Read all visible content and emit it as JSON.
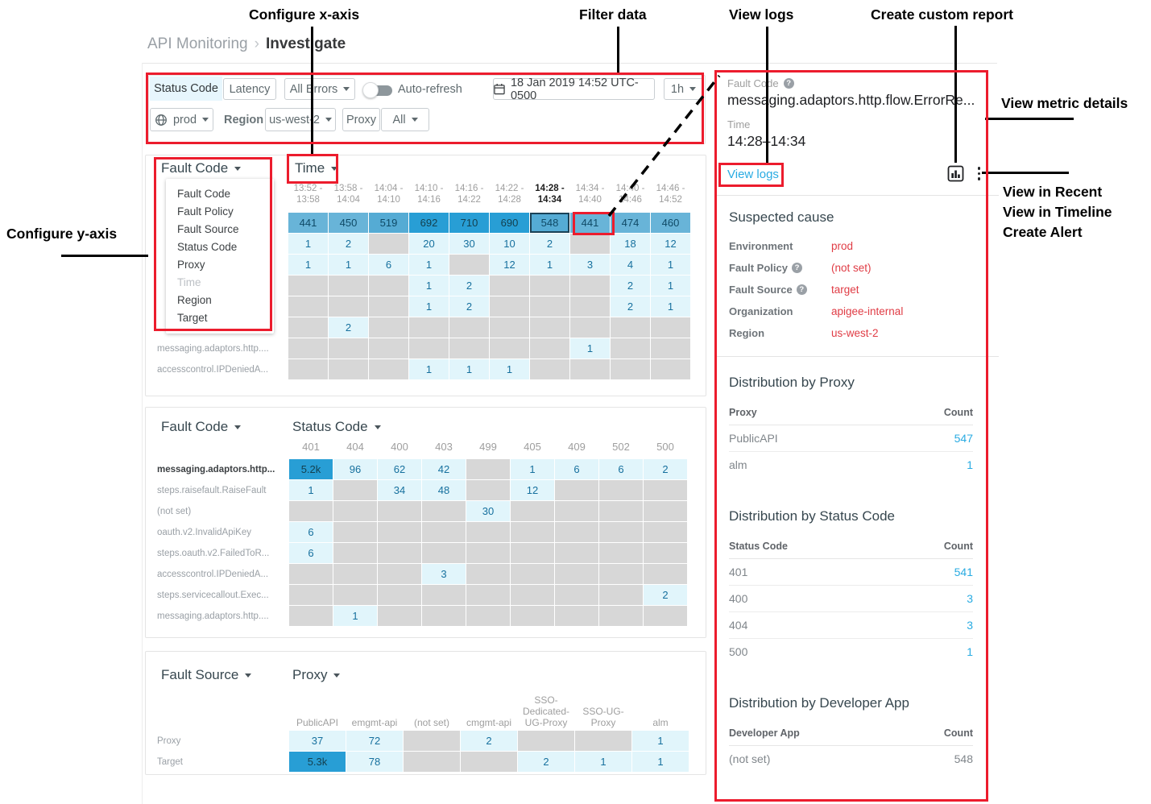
{
  "icons": {
    "help": "?"
  },
  "annotations": {
    "configure_x_axis": "Configure x-axis",
    "filter_data": "Filter data",
    "view_logs": "View logs",
    "create_custom_report": "Create custom report",
    "view_metric_details": "View metric details",
    "configure_y_axis": "Configure y-axis",
    "menu_items": [
      "View in Recent",
      "View in Timeline",
      "Create Alert"
    ]
  },
  "breadcrumb": {
    "parent": "API Monitoring",
    "separator": "›",
    "current": "Investigate"
  },
  "filter_bar": {
    "tabs": [
      {
        "label": "Status Code"
      },
      {
        "label": "Latency"
      }
    ],
    "errors_dropdown": "All Errors",
    "auto_refresh_label": "Auto-refresh",
    "date": "18 Jan 2019 14:52 UTC-0500",
    "interval": "1h",
    "environment": "prod",
    "region_label": "Region",
    "region_value": "us-west-2",
    "proxy_label": "Proxy",
    "proxy_value": "All"
  },
  "matrix1": {
    "y_axis": "Fault Code",
    "x_axis": "Time",
    "dropdown": [
      {
        "label": "Fault Code",
        "disabled": false
      },
      {
        "label": "Fault Policy",
        "disabled": false
      },
      {
        "label": "Fault Source",
        "disabled": false
      },
      {
        "label": "Status Code",
        "disabled": false
      },
      {
        "label": "Proxy",
        "disabled": false
      },
      {
        "label": "Time",
        "disabled": true
      },
      {
        "label": "Region",
        "disabled": false
      },
      {
        "label": "Target",
        "disabled": false
      }
    ],
    "columns": [
      {
        "lines": [
          "13:52 -",
          "13:58"
        ]
      },
      {
        "lines": [
          "13:58 -",
          "14:04"
        ]
      },
      {
        "lines": [
          "14:04 -",
          "14:10"
        ]
      },
      {
        "lines": [
          "14:10 -",
          "14:16"
        ]
      },
      {
        "lines": [
          "14:16 -",
          "14:22"
        ]
      },
      {
        "lines": [
          "14:22 -",
          "14:28"
        ]
      },
      {
        "lines": [
          "14:28 -",
          "14:34"
        ],
        "bold": true
      },
      {
        "lines": [
          "14:34 -",
          "14:40"
        ]
      },
      {
        "lines": [
          "14:40 -",
          "14:46"
        ]
      },
      {
        "lines": [
          "14:46 -",
          "14:52"
        ]
      }
    ],
    "rows": [
      {
        "label": "",
        "cells": [
          {
            "v": "441",
            "s": "m"
          },
          {
            "v": "450",
            "s": "m"
          },
          {
            "v": "519",
            "s": "m2"
          },
          {
            "v": "692",
            "s": "d"
          },
          {
            "v": "710",
            "s": "d"
          },
          {
            "v": "690",
            "s": "d"
          },
          {
            "v": "548",
            "s": "m2",
            "sel": true
          },
          {
            "v": "441",
            "s": "m"
          },
          {
            "v": "474",
            "s": "m"
          },
          {
            "v": "460",
            "s": "m"
          }
        ]
      },
      {
        "label": "",
        "cells": [
          {
            "v": "1",
            "s": "l"
          },
          {
            "v": "2",
            "s": "l"
          },
          null,
          {
            "v": "20",
            "s": "l"
          },
          {
            "v": "30",
            "s": "l"
          },
          {
            "v": "10",
            "s": "l"
          },
          {
            "v": "2",
            "s": "l"
          },
          null,
          {
            "v": "18",
            "s": "l"
          },
          {
            "v": "12",
            "s": "l"
          }
        ]
      },
      {
        "label": "",
        "cells": [
          {
            "v": "1",
            "s": "l"
          },
          {
            "v": "1",
            "s": "l"
          },
          {
            "v": "6",
            "s": "l"
          },
          {
            "v": "1",
            "s": "l"
          },
          null,
          {
            "v": "12",
            "s": "l"
          },
          {
            "v": "1",
            "s": "l"
          },
          {
            "v": "3",
            "s": "l"
          },
          {
            "v": "4",
            "s": "l"
          },
          {
            "v": "1",
            "s": "l"
          }
        ]
      },
      {
        "label": "",
        "cells": [
          null,
          null,
          null,
          {
            "v": "1",
            "s": "l"
          },
          {
            "v": "2",
            "s": "l"
          },
          null,
          null,
          null,
          {
            "v": "2",
            "s": "l"
          },
          {
            "v": "1",
            "s": "l"
          }
        ]
      },
      {
        "label": "",
        "cells": [
          null,
          null,
          null,
          {
            "v": "1",
            "s": "l"
          },
          {
            "v": "2",
            "s": "l"
          },
          null,
          null,
          null,
          {
            "v": "2",
            "s": "l"
          },
          {
            "v": "1",
            "s": "l"
          }
        ]
      },
      {
        "label": "",
        "cells": [
          null,
          {
            "v": "2",
            "s": "l"
          },
          null,
          null,
          null,
          null,
          null,
          null,
          null,
          null
        ]
      },
      {
        "label": "messaging.adaptors.http....",
        "cells": [
          null,
          null,
          null,
          null,
          null,
          null,
          null,
          {
            "v": "1",
            "s": "l"
          },
          null,
          null
        ]
      },
      {
        "label": "accesscontrol.IPDeniedA...",
        "cells": [
          null,
          null,
          null,
          {
            "v": "1",
            "s": "l"
          },
          {
            "v": "1",
            "s": "l"
          },
          {
            "v": "1",
            "s": "l"
          },
          null,
          null,
          null,
          null
        ]
      }
    ]
  },
  "matrix2": {
    "y_axis": "Fault Code",
    "x_axis": "Status Code",
    "columns": [
      {
        "lines": [
          "401"
        ]
      },
      {
        "lines": [
          "404"
        ]
      },
      {
        "lines": [
          "400"
        ]
      },
      {
        "lines": [
          "403"
        ]
      },
      {
        "lines": [
          "499"
        ]
      },
      {
        "lines": [
          "405"
        ]
      },
      {
        "lines": [
          "409"
        ]
      },
      {
        "lines": [
          "502"
        ]
      },
      {
        "lines": [
          "500"
        ]
      }
    ],
    "rows": [
      {
        "label": "messaging.adaptors.http...",
        "bold": true,
        "cells": [
          {
            "v": "5.2k",
            "s": "d"
          },
          {
            "v": "96",
            "s": "l"
          },
          {
            "v": "62",
            "s": "l"
          },
          {
            "v": "42",
            "s": "l"
          },
          null,
          {
            "v": "1",
            "s": "l"
          },
          {
            "v": "6",
            "s": "l"
          },
          {
            "v": "6",
            "s": "l"
          },
          {
            "v": "2",
            "s": "l"
          }
        ]
      },
      {
        "label": "steps.raisefault.RaiseFault",
        "cells": [
          {
            "v": "1",
            "s": "l"
          },
          null,
          {
            "v": "34",
            "s": "l"
          },
          {
            "v": "48",
            "s": "l"
          },
          null,
          {
            "v": "12",
            "s": "l"
          },
          null,
          null,
          null
        ]
      },
      {
        "label": "(not set)",
        "cells": [
          null,
          null,
          null,
          null,
          {
            "v": "30",
            "s": "l"
          },
          null,
          null,
          null,
          null
        ]
      },
      {
        "label": "oauth.v2.InvalidApiKey",
        "cells": [
          {
            "v": "6",
            "s": "l"
          },
          null,
          null,
          null,
          null,
          null,
          null,
          null,
          null
        ]
      },
      {
        "label": "steps.oauth.v2.FailedToR...",
        "cells": [
          {
            "v": "6",
            "s": "l"
          },
          null,
          null,
          null,
          null,
          null,
          null,
          null,
          null
        ]
      },
      {
        "label": "accesscontrol.IPDeniedA...",
        "cells": [
          null,
          null,
          null,
          {
            "v": "3",
            "s": "l"
          },
          null,
          null,
          null,
          null,
          null
        ]
      },
      {
        "label": "steps.servicecallout.Exec...",
        "cells": [
          null,
          null,
          null,
          null,
          null,
          null,
          null,
          null,
          {
            "v": "2",
            "s": "l"
          }
        ]
      },
      {
        "label": "messaging.adaptors.http....",
        "cells": [
          null,
          {
            "v": "1",
            "s": "l"
          },
          null,
          null,
          null,
          null,
          null,
          null,
          null
        ]
      }
    ]
  },
  "matrix3": {
    "y_axis": "Fault Source",
    "x_axis": "Proxy",
    "columns": [
      {
        "lines": [
          "PublicAPI"
        ]
      },
      {
        "lines": [
          "emgmt-api"
        ]
      },
      {
        "lines": [
          "(not set)"
        ]
      },
      {
        "lines": [
          "cmgmt-api"
        ]
      },
      {
        "lines": [
          "SSO-",
          "Dedicated-",
          "UG-Proxy"
        ]
      },
      {
        "lines": [
          "SSO-UG-",
          "Proxy"
        ]
      },
      {
        "lines": [
          "alm"
        ]
      }
    ],
    "rows": [
      {
        "label": "Proxy",
        "cells": [
          {
            "v": "37",
            "s": "l"
          },
          {
            "v": "72",
            "s": "l"
          },
          null,
          {
            "v": "2",
            "s": "l"
          },
          null,
          null,
          {
            "v": "1",
            "s": "l"
          }
        ]
      },
      {
        "label": "Target",
        "cells": [
          {
            "v": "5.3k",
            "s": "d"
          },
          {
            "v": "78",
            "s": "l"
          },
          null,
          null,
          {
            "v": "2",
            "s": "l"
          },
          {
            "v": "1",
            "s": "l"
          },
          {
            "v": "1",
            "s": "l"
          }
        ]
      }
    ]
  },
  "right_panel": {
    "fault_code_label": "Fault Code",
    "fault_code_value": "messaging.adaptors.http.flow.ErrorRe...",
    "time_label": "Time",
    "time_value": "14:28–14:34",
    "view_logs": "View logs",
    "suspected_cause": {
      "title": "Suspected cause",
      "rows": [
        {
          "label": "Environment",
          "help": false,
          "value": "prod"
        },
        {
          "label": "Fault Policy",
          "help": true,
          "value": "(not set)"
        },
        {
          "label": "Fault Source",
          "help": true,
          "value": "target"
        },
        {
          "label": "Organization",
          "help": false,
          "value": "apigee-internal"
        },
        {
          "label": "Region",
          "help": false,
          "value": "us-west-2"
        }
      ]
    },
    "distributions": [
      {
        "title": "Distribution by Proxy",
        "col1": "Proxy",
        "col2": "Count",
        "rows": [
          {
            "name": "PublicAPI",
            "count": "547",
            "link": true
          },
          {
            "name": "alm",
            "count": "1",
            "link": true
          }
        ]
      },
      {
        "title": "Distribution by Status Code",
        "col1": "Status Code",
        "col2": "Count",
        "rows": [
          {
            "name": "401",
            "count": "541",
            "link": true
          },
          {
            "name": "400",
            "count": "3",
            "link": true
          },
          {
            "name": "404",
            "count": "3",
            "link": true
          },
          {
            "name": "500",
            "count": "1",
            "link": true
          }
        ]
      },
      {
        "title": "Distribution by Developer App",
        "col1": "Developer App",
        "col2": "Count",
        "rows": [
          {
            "name": "(not set)",
            "count": "548",
            "link": false
          }
        ]
      }
    ]
  },
  "colors": {
    "annotation_red": "#ec1c2d",
    "cell_dark": "#289ed5",
    "cell_mid": "#68b4d8",
    "cell_light": "#e1f5fb",
    "cell_empty": "#d7d7d7",
    "link_blue": "#29abe2",
    "cause_value_red": "#e03c45"
  }
}
